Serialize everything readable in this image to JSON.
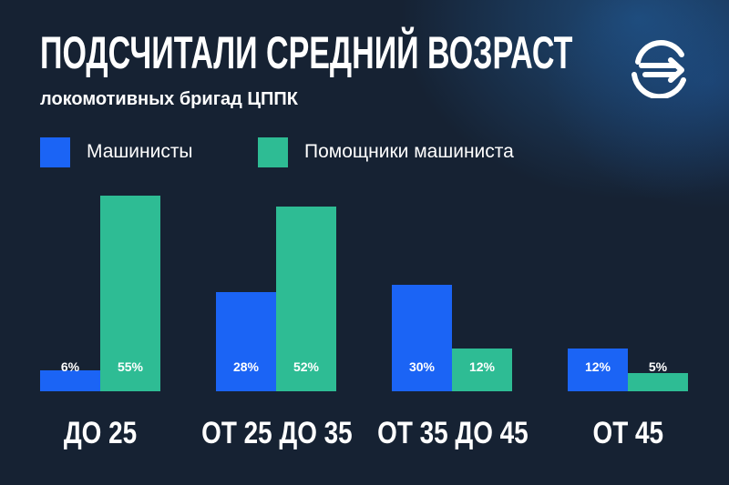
{
  "header": {
    "title": "ПОДСЧИТАЛИ СРЕДНИЙ ВОЗРАСТ",
    "subtitle": "локомотивных бригад ЦППК"
  },
  "logo": {
    "icon": "railway-logo-icon",
    "color": "#ffffff"
  },
  "colors": {
    "background": "#162233",
    "series_1": "#1b64f5",
    "series_2": "#2ebc94"
  },
  "chart_data": {
    "type": "bar",
    "title": "ПОДСЧИТАЛИ СРЕДНИЙ ВОЗРАСТ",
    "subtitle": "локомотивных бригад ЦППК",
    "xlabel": "",
    "ylabel": "",
    "categories": [
      "ДО 25",
      "ОТ 25 ДО 35",
      "ОТ 35 ДО 45",
      "ОТ 45"
    ],
    "series": [
      {
        "name": "Машинисты",
        "values": [
          6,
          28,
          30,
          12
        ],
        "labels": [
          "6%",
          "28%",
          "30%",
          "12%"
        ],
        "color": "#1b64f5"
      },
      {
        "name": "Помощники машиниста",
        "values": [
          55,
          52,
          12,
          5
        ],
        "labels": [
          "55%",
          "52%",
          "12%",
          "5%"
        ],
        "color": "#2ebc94"
      }
    ],
    "legend_position": "top-left",
    "grid": false,
    "unit": "%"
  }
}
